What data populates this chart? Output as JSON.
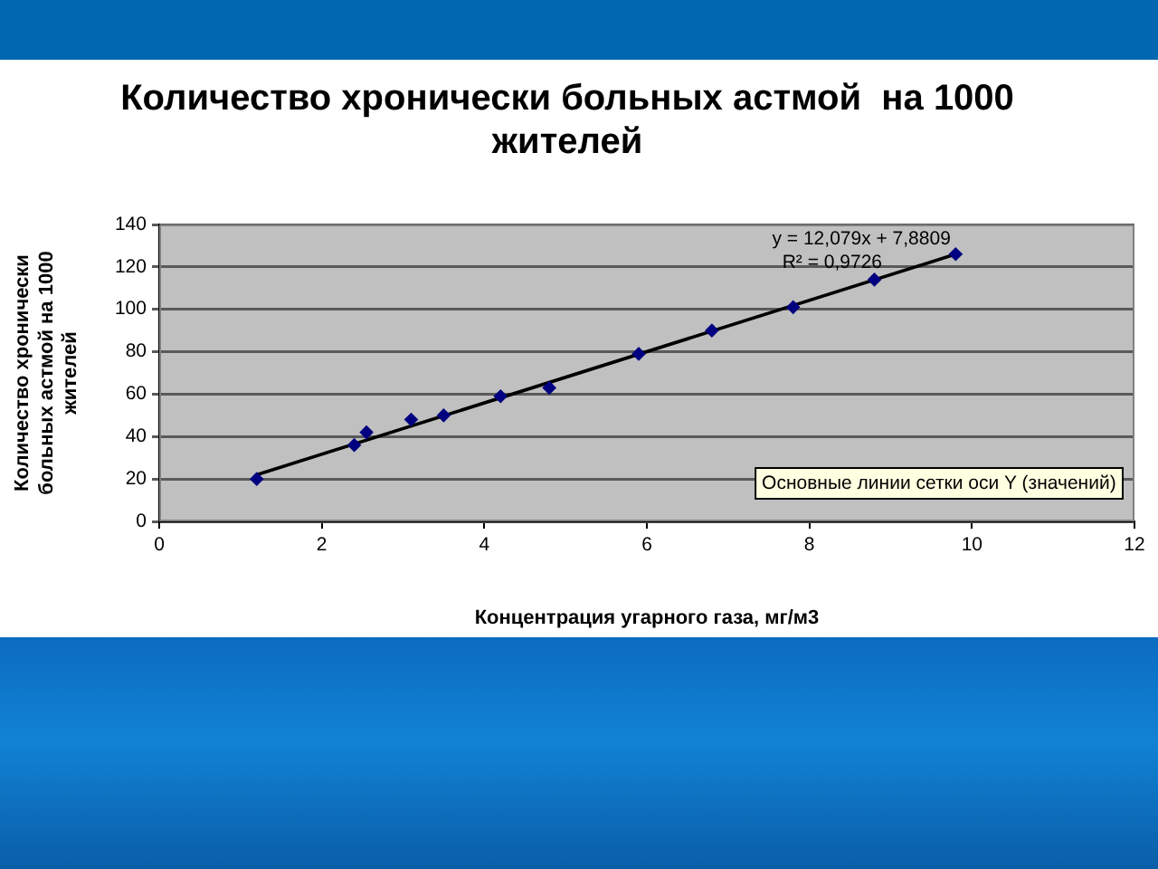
{
  "chart_data": {
    "type": "scatter",
    "title": "Количество хронически больных астмой  на 1000 жителей",
    "xlabel": "Концентрация угарного газа, мг/м3",
    "ylabel": "Количество хронически больных астмой на 1000 жителей",
    "annotations": [
      "y = 12,079x + 7,8809",
      "R² = 0,9726",
      "Основные линии сетки оси Y (значений)"
    ],
    "x": [
      1.2,
      2.4,
      2.55,
      3.1,
      3.5,
      4.2,
      4.8,
      5.9,
      6.8,
      7.8,
      8.8,
      9.8
    ],
    "series": [
      {
        "type": "scatter",
        "color": "#000080",
        "values": [
          20,
          36,
          42,
          48,
          50,
          59,
          63,
          79,
          90,
          101,
          114,
          126
        ]
      },
      {
        "type": "line",
        "x": [
          1.2,
          9.8
        ],
        "values": [
          22,
          126
        ],
        "color": "#000000",
        "marker": "none"
      }
    ],
    "xlim": [
      0,
      12
    ],
    "xticks": [
      0,
      2,
      4,
      6,
      8,
      10,
      12
    ],
    "ylim": [
      0,
      140
    ],
    "yticks": [
      0,
      20,
      40,
      60,
      80,
      100,
      120,
      140
    ],
    "grid": "y",
    "marker": "diamond"
  }
}
